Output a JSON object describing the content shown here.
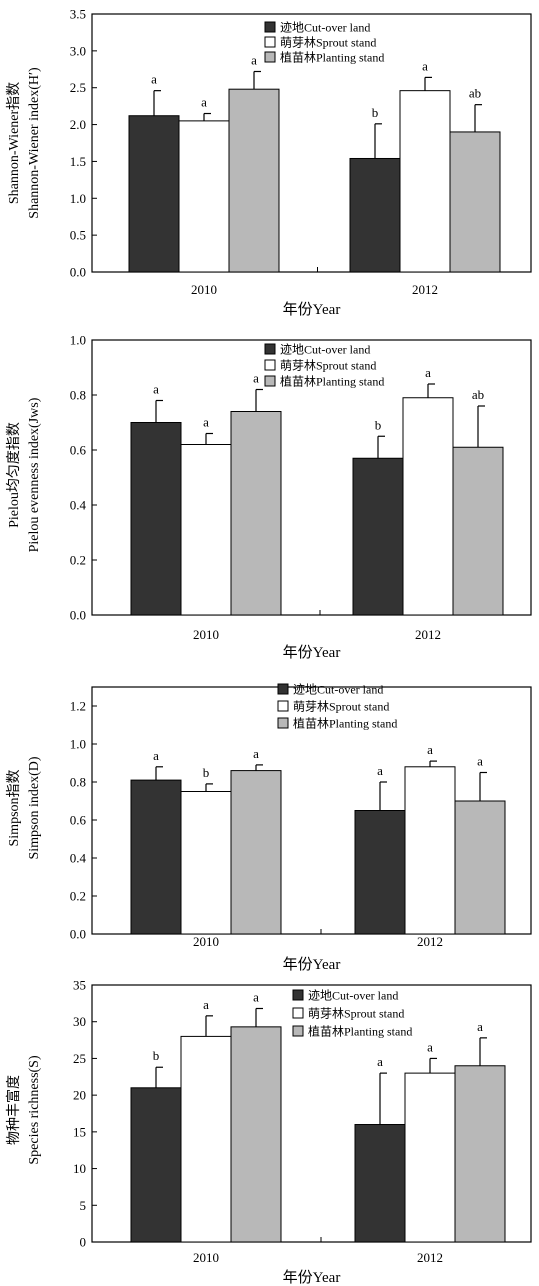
{
  "chart_data": [
    {
      "type": "bar",
      "categories": [
        "2010",
        "2012"
      ],
      "xlabel": "年份Year",
      "ylabel_lines": [
        "Shannon-Wiener指数",
        "Shannon-Wiener index(H′)"
      ],
      "ylim": [
        0,
        3.5
      ],
      "yticks": [
        "0.0",
        "0.5",
        "1.0",
        "1.5",
        "2.0",
        "2.5",
        "3.0",
        "3.5"
      ],
      "series": [
        {
          "name": "迹地Cut-over land",
          "color": "#333333",
          "values": [
            2.12,
            1.54
          ],
          "errors": [
            0.34,
            0.47
          ],
          "sig": [
            "a",
            "b"
          ]
        },
        {
          "name": "萌芽林Sprout stand",
          "color": "#ffffff",
          "values": [
            2.05,
            2.46
          ],
          "errors": [
            0.1,
            0.18
          ],
          "sig": [
            "a",
            "a"
          ]
        },
        {
          "name": "植苗林Planting stand",
          "color": "#b8b8b8",
          "values": [
            2.48,
            1.9
          ],
          "errors": [
            0.24,
            0.37
          ],
          "sig": [
            "a",
            "ab"
          ]
        }
      ]
    },
    {
      "type": "bar",
      "categories": [
        "2010",
        "2012"
      ],
      "xlabel": "年份Year",
      "ylabel_lines": [
        "Pielou均匀度指数",
        "Pielou evenness index(Jws)"
      ],
      "ylim": [
        0,
        1.0
      ],
      "yticks": [
        "0.0",
        "0.2",
        "0.4",
        "0.6",
        "0.8",
        "1.0"
      ],
      "series": [
        {
          "name": "迹地Cut-over land",
          "color": "#333333",
          "values": [
            0.7,
            0.57
          ],
          "errors": [
            0.08,
            0.08
          ],
          "sig": [
            "a",
            "b"
          ]
        },
        {
          "name": "萌芽林Sprout stand",
          "color": "#ffffff",
          "values": [
            0.62,
            0.79
          ],
          "errors": [
            0.04,
            0.05
          ],
          "sig": [
            "a",
            "a"
          ]
        },
        {
          "name": "植苗林Planting stand",
          "color": "#b8b8b8",
          "values": [
            0.74,
            0.61
          ],
          "errors": [
            0.08,
            0.15
          ],
          "sig": [
            "a",
            "ab"
          ]
        }
      ]
    },
    {
      "type": "bar",
      "categories": [
        "2010",
        "2012"
      ],
      "xlabel": "年份Year",
      "ylabel_lines": [
        "Simpson指数",
        "Simpson index(D)"
      ],
      "ylim": [
        0,
        1.3
      ],
      "yticks": [
        "0.0",
        "0.2",
        "0.4",
        "0.6",
        "0.8",
        "1.0",
        "1.2"
      ],
      "series": [
        {
          "name": "迹地Cut-over land",
          "color": "#333333",
          "values": [
            0.81,
            0.65
          ],
          "errors": [
            0.07,
            0.15
          ],
          "sig": [
            "a",
            "a"
          ]
        },
        {
          "name": "萌芽林Sprout stand",
          "color": "#ffffff",
          "values": [
            0.75,
            0.88
          ],
          "errors": [
            0.04,
            0.03
          ],
          "sig": [
            "b",
            "a"
          ]
        },
        {
          "name": "植苗林Planting stand",
          "color": "#b8b8b8",
          "values": [
            0.86,
            0.7
          ],
          "errors": [
            0.03,
            0.15
          ],
          "sig": [
            "a",
            "a"
          ]
        }
      ]
    },
    {
      "type": "bar",
      "categories": [
        "2010",
        "2012"
      ],
      "xlabel": "年份Year",
      "ylabel_lines": [
        "物种丰富度",
        "Species richness(S)"
      ],
      "ylim": [
        0,
        35
      ],
      "yticks": [
        "0",
        "5",
        "10",
        "15",
        "20",
        "25",
        "30",
        "35"
      ],
      "series": [
        {
          "name": "迹地Cut-over land",
          "color": "#333333",
          "values": [
            21.0,
            16.0
          ],
          "errors": [
            2.8,
            7.0
          ],
          "sig": [
            "b",
            "a"
          ]
        },
        {
          "name": "萌芽林Sprout stand",
          "color": "#ffffff",
          "values": [
            28.0,
            23.0
          ],
          "errors": [
            2.8,
            2.0
          ],
          "sig": [
            "a",
            "a"
          ]
        },
        {
          "name": "植苗林Planting stand",
          "color": "#b8b8b8",
          "values": [
            29.3,
            24.0
          ],
          "errors": [
            2.5,
            3.8
          ],
          "sig": [
            "a",
            "a"
          ]
        }
      ]
    }
  ]
}
